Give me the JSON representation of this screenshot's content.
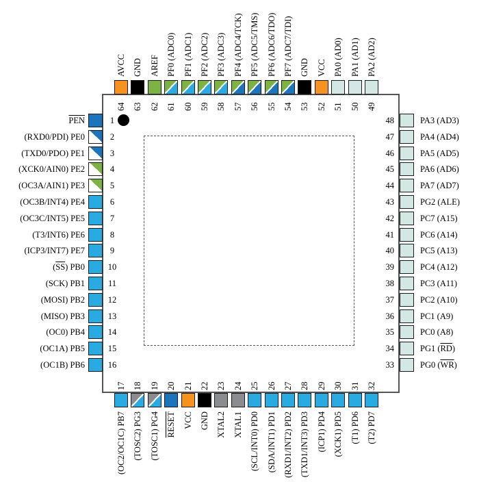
{
  "colors": {
    "orange": "#F6921E",
    "black": "#000000",
    "green": "#7CB342",
    "cyan": "#29ABE2",
    "darkblue": "#1C75BC",
    "paleblue": "#D3E8E5",
    "gray": "#8A8C8F",
    "white": "#FFFFFF"
  },
  "pins": {
    "left": [
      {
        "num": "1",
        "label": [
          {
            "t": "PEN",
            "o": true
          }
        ],
        "fill": "darkblue"
      },
      {
        "num": "2",
        "label": [
          {
            "t": "(RXD0/PDI) PE0",
            "o": false
          }
        ],
        "fill": {
          "split": [
            "darkblue",
            "white"
          ],
          "dir": "ur-ll"
        }
      },
      {
        "num": "3",
        "label": [
          {
            "t": "(TXD0/PDO) PE1",
            "o": false
          }
        ],
        "fill": {
          "split": [
            "darkblue",
            "white"
          ],
          "dir": "ur-ll"
        }
      },
      {
        "num": "4",
        "label": [
          {
            "t": "(XCK0/AIN0) PE2",
            "o": false
          }
        ],
        "fill": {
          "split": [
            "green",
            "white"
          ],
          "dir": "ur-ll"
        }
      },
      {
        "num": "5",
        "label": [
          {
            "t": "(OC3A/AIN1) PE3",
            "o": false
          }
        ],
        "fill": {
          "split": [
            "green",
            "white"
          ],
          "dir": "ur-ll"
        }
      },
      {
        "num": "6",
        "label": [
          {
            "t": "(OC3B/INT4) PE4",
            "o": false
          }
        ],
        "fill": "cyan"
      },
      {
        "num": "7",
        "label": [
          {
            "t": "(OC3C/INT5) PE5",
            "o": false
          }
        ],
        "fill": "cyan"
      },
      {
        "num": "8",
        "label": [
          {
            "t": "(T3/INT6) PE6",
            "o": false
          }
        ],
        "fill": "cyan"
      },
      {
        "num": "9",
        "label": [
          {
            "t": "(ICP3/INT7) PE7",
            "o": false
          }
        ],
        "fill": "cyan"
      },
      {
        "num": "10",
        "label": [
          {
            "t": "(",
            "o": false
          },
          {
            "t": "SS",
            "o": true
          },
          {
            "t": ") PB0",
            "o": false
          }
        ],
        "fill": "cyan"
      },
      {
        "num": "11",
        "label": [
          {
            "t": "(SCK) PB1",
            "o": false
          }
        ],
        "fill": "cyan"
      },
      {
        "num": "12",
        "label": [
          {
            "t": "(MOSI) PB2",
            "o": false
          }
        ],
        "fill": "cyan"
      },
      {
        "num": "13",
        "label": [
          {
            "t": "(MISO) PB3",
            "o": false
          }
        ],
        "fill": "cyan"
      },
      {
        "num": "14",
        "label": [
          {
            "t": "(OC0) PB4",
            "o": false
          }
        ],
        "fill": "cyan"
      },
      {
        "num": "15",
        "label": [
          {
            "t": "(OC1A) PB5",
            "o": false
          }
        ],
        "fill": "cyan"
      },
      {
        "num": "16",
        "label": [
          {
            "t": "(OC1B) PB6",
            "o": false
          }
        ],
        "fill": "cyan"
      }
    ],
    "top": [
      {
        "num": "64",
        "label": [
          {
            "t": "AVCC",
            "o": false
          }
        ],
        "fill": "orange"
      },
      {
        "num": "63",
        "label": [
          {
            "t": "GND",
            "o": false
          }
        ],
        "fill": "black"
      },
      {
        "num": "62",
        "label": [
          {
            "t": "AREF",
            "o": false
          }
        ],
        "fill": "green"
      },
      {
        "num": "61",
        "label": [
          {
            "t": "PF0 (ADC0)",
            "o": false
          }
        ],
        "fill": {
          "split": [
            "green",
            "cyan"
          ],
          "dir": "ul-lr"
        }
      },
      {
        "num": "60",
        "label": [
          {
            "t": "PF1 (ADC1)",
            "o": false
          }
        ],
        "fill": {
          "split": [
            "green",
            "cyan"
          ],
          "dir": "ul-lr"
        }
      },
      {
        "num": "59",
        "label": [
          {
            "t": "PF2 (ADC2)",
            "o": false
          }
        ],
        "fill": {
          "split": [
            "green",
            "cyan"
          ],
          "dir": "ul-lr"
        }
      },
      {
        "num": "58",
        "label": [
          {
            "t": "PF3 (ADC3)",
            "o": false
          }
        ],
        "fill": {
          "split": [
            "green",
            "cyan"
          ],
          "dir": "ul-lr"
        }
      },
      {
        "num": "57",
        "label": [
          {
            "t": "PF4 (ADC4/TCK)",
            "o": false
          }
        ],
        "fill": {
          "split": [
            "green",
            "darkblue"
          ],
          "dir": "ul-lr"
        }
      },
      {
        "num": "56",
        "label": [
          {
            "t": "PF5 (ADC5/TMS)",
            "o": false
          }
        ],
        "fill": {
          "split": [
            "green",
            "darkblue"
          ],
          "dir": "ul-lr"
        }
      },
      {
        "num": "55",
        "label": [
          {
            "t": "PF6 (ADC6/TDO)",
            "o": false
          }
        ],
        "fill": {
          "split": [
            "green",
            "darkblue"
          ],
          "dir": "ul-lr"
        }
      },
      {
        "num": "54",
        "label": [
          {
            "t": "PF7 (ADC7/TDI)",
            "o": false
          }
        ],
        "fill": {
          "split": [
            "green",
            "darkblue"
          ],
          "dir": "ul-lr"
        }
      },
      {
        "num": "53",
        "label": [
          {
            "t": "GND",
            "o": false
          }
        ],
        "fill": "black"
      },
      {
        "num": "52",
        "label": [
          {
            "t": "VCC",
            "o": false
          }
        ],
        "fill": "orange"
      },
      {
        "num": "51",
        "label": [
          {
            "t": "PA0 (AD0)",
            "o": false
          }
        ],
        "fill": "paleblue"
      },
      {
        "num": "50",
        "label": [
          {
            "t": "PA1 (AD1)",
            "o": false
          }
        ],
        "fill": "paleblue"
      },
      {
        "num": "49",
        "label": [
          {
            "t": "PA2 (AD2)",
            "o": false
          }
        ],
        "fill": "paleblue"
      }
    ],
    "right": [
      {
        "num": "48",
        "label": [
          {
            "t": "PA3 (AD3)",
            "o": false
          }
        ],
        "fill": "paleblue"
      },
      {
        "num": "47",
        "label": [
          {
            "t": "PA4 (AD4)",
            "o": false
          }
        ],
        "fill": "paleblue"
      },
      {
        "num": "46",
        "label": [
          {
            "t": "PA5 (AD5)",
            "o": false
          }
        ],
        "fill": "paleblue"
      },
      {
        "num": "45",
        "label": [
          {
            "t": "PA6 (AD6)",
            "o": false
          }
        ],
        "fill": "paleblue"
      },
      {
        "num": "44",
        "label": [
          {
            "t": "PA7 (AD7)",
            "o": false
          }
        ],
        "fill": "paleblue"
      },
      {
        "num": "43",
        "label": [
          {
            "t": "PG2 (ALE)",
            "o": false
          }
        ],
        "fill": "paleblue"
      },
      {
        "num": "42",
        "label": [
          {
            "t": "PC7 (A15)",
            "o": false
          }
        ],
        "fill": "paleblue"
      },
      {
        "num": "41",
        "label": [
          {
            "t": "PC6 (A14)",
            "o": false
          }
        ],
        "fill": "paleblue"
      },
      {
        "num": "40",
        "label": [
          {
            "t": "PC5 (A13)",
            "o": false
          }
        ],
        "fill": "paleblue"
      },
      {
        "num": "39",
        "label": [
          {
            "t": "PC4 (A12)",
            "o": false
          }
        ],
        "fill": "paleblue"
      },
      {
        "num": "38",
        "label": [
          {
            "t": "PC3 (A11)",
            "o": false
          }
        ],
        "fill": "paleblue"
      },
      {
        "num": "37",
        "label": [
          {
            "t": "PC2 (A10)",
            "o": false
          }
        ],
        "fill": "paleblue"
      },
      {
        "num": "36",
        "label": [
          {
            "t": "PC1 (A9)",
            "o": false
          }
        ],
        "fill": "paleblue"
      },
      {
        "num": "35",
        "label": [
          {
            "t": "PC0 (A8)",
            "o": false
          }
        ],
        "fill": "paleblue"
      },
      {
        "num": "34",
        "label": [
          {
            "t": "PG1 (",
            "o": false
          },
          {
            "t": "RD",
            "o": true
          },
          {
            "t": ")",
            "o": false
          }
        ],
        "fill": "paleblue"
      },
      {
        "num": "33",
        "label": [
          {
            "t": "PG0 (",
            "o": false
          },
          {
            "t": "WR",
            "o": true
          },
          {
            "t": ")",
            "o": false
          }
        ],
        "fill": "paleblue"
      }
    ],
    "bottom": [
      {
        "num": "17",
        "label": [
          {
            "t": "(OC2/OC1C) PB7",
            "o": false
          }
        ],
        "fill": "cyan"
      },
      {
        "num": "18",
        "label": [
          {
            "t": "(TOSC2) PG3",
            "o": false
          }
        ],
        "fill": {
          "split": [
            "gray",
            "cyan"
          ],
          "dir": "ul-lr"
        }
      },
      {
        "num": "19",
        "label": [
          {
            "t": "(TOSC1) PG4",
            "o": false
          }
        ],
        "fill": {
          "split": [
            "gray",
            "cyan"
          ],
          "dir": "ul-lr"
        }
      },
      {
        "num": "20",
        "label": [
          {
            "t": "RESET",
            "o": true
          }
        ],
        "fill": "darkblue"
      },
      {
        "num": "21",
        "label": [
          {
            "t": "VCC",
            "o": false
          }
        ],
        "fill": "orange"
      },
      {
        "num": "22",
        "label": [
          {
            "t": "GND",
            "o": false
          }
        ],
        "fill": "black"
      },
      {
        "num": "23",
        "label": [
          {
            "t": "XTAL2",
            "o": false
          }
        ],
        "fill": "gray"
      },
      {
        "num": "24",
        "label": [
          {
            "t": "XTAL1",
            "o": false
          }
        ],
        "fill": "gray"
      },
      {
        "num": "25",
        "label": [
          {
            "t": "(SCL/INT0) PD0",
            "o": false
          }
        ],
        "fill": "cyan"
      },
      {
        "num": "26",
        "label": [
          {
            "t": "(SDA/INT1) PD1",
            "o": false
          }
        ],
        "fill": "cyan"
      },
      {
        "num": "27",
        "label": [
          {
            "t": "(RXD1/INT2) PD2",
            "o": false
          }
        ],
        "fill": "cyan"
      },
      {
        "num": "28",
        "label": [
          {
            "t": "(TXD1/INT3) PD3",
            "o": false
          }
        ],
        "fill": "cyan"
      },
      {
        "num": "29",
        "label": [
          {
            "t": "(ICP1) PD4",
            "o": false
          }
        ],
        "fill": "cyan"
      },
      {
        "num": "30",
        "label": [
          {
            "t": "(XCK1) PD5",
            "o": false
          }
        ],
        "fill": "cyan"
      },
      {
        "num": "31",
        "label": [
          {
            "t": "(T1) PD6",
            "o": false
          }
        ],
        "fill": "cyan"
      },
      {
        "num": "32",
        "label": [
          {
            "t": "(T2) PD7",
            "o": false
          }
        ],
        "fill": "cyan"
      }
    ]
  }
}
